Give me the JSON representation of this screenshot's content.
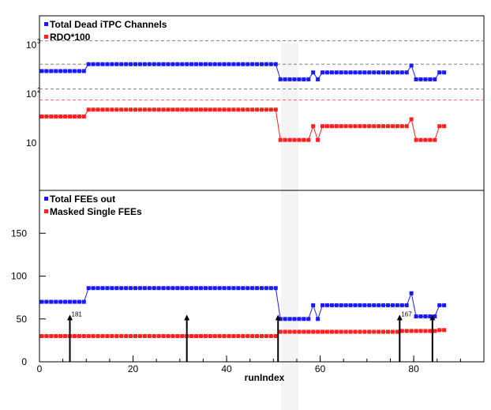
{
  "chart_data": [
    {
      "type": "line",
      "panel": "top",
      "ylabel": "",
      "xlabel": "",
      "scale": "log",
      "xlim": [
        0,
        95
      ],
      "y_tick_labels": [
        "10",
        "10",
        "10"
      ],
      "y_tick_exponents": [
        "3",
        "2",
        ""
      ],
      "legend": [
        "Total Dead iTPC Channels",
        "RDO*100"
      ],
      "legend_position": "top-left",
      "grid": false,
      "series": [
        {
          "name": "Total Dead iTPC Channels",
          "color": "#1a1aff",
          "segments": [
            {
              "x0": 0,
              "x1": 9,
              "y": 0.78
            },
            {
              "x0": 10,
              "x1": 50,
              "y": 0.83
            },
            {
              "x0": 51,
              "x1": 57,
              "y": 0.72
            },
            {
              "x0": 58,
              "x1": 58,
              "y": 0.77
            },
            {
              "x0": 59,
              "x1": 59,
              "y": 0.72
            },
            {
              "x0": 60,
              "x1": 78,
              "y": 0.77
            },
            {
              "x0": 79,
              "x1": 79,
              "y": 0.82
            },
            {
              "x0": 80,
              "x1": 84,
              "y": 0.72
            },
            {
              "x0": 85,
              "x1": 86,
              "y": 0.77
            }
          ]
        },
        {
          "name": "RDO*100",
          "color": "#ff2020",
          "segments": [
            {
              "x0": 0,
              "x1": 9,
              "y": 0.45
            },
            {
              "x0": 10,
              "x1": 50,
              "y": 0.5
            },
            {
              "x0": 51,
              "x1": 57,
              "y": 0.28
            },
            {
              "x0": 58,
              "x1": 58,
              "y": 0.38
            },
            {
              "x0": 59,
              "x1": 59,
              "y": 0.28
            },
            {
              "x0": 60,
              "x1": 78,
              "y": 0.38
            },
            {
              "x0": 79,
              "x1": 79,
              "y": 0.43
            },
            {
              "x0": 80,
              "x1": 84,
              "y": 0.28
            },
            {
              "x0": 85,
              "x1": 86,
              "y": 0.38
            }
          ]
        }
      ],
      "reference_lines": [
        {
          "y": 1.0,
          "color": "#808080"
        },
        {
          "y": 0.83,
          "color": "#808080"
        },
        {
          "y": 0.65,
          "color": "#808080"
        },
        {
          "y": 0.57,
          "color": "#ff6060"
        }
      ]
    },
    {
      "type": "line",
      "panel": "bottom",
      "xlabel": "runIndex",
      "ylabel": "",
      "xlim": [
        0,
        95
      ],
      "ylim": [
        0,
        200
      ],
      "x_ticks": [
        0,
        20,
        40,
        60,
        80
      ],
      "y_ticks": [
        0,
        50,
        100,
        150
      ],
      "legend": [
        "Total FEEs out",
        "Masked Single FEEs"
      ],
      "legend_position": "top-left",
      "grid": false,
      "series": [
        {
          "name": "Total FEEs out",
          "color": "#1a1aff",
          "segments": [
            {
              "x0": 0,
              "x1": 9,
              "y": 70
            },
            {
              "x0": 10,
              "x1": 50,
              "y": 86
            },
            {
              "x0": 51,
              "x1": 57,
              "y": 50
            },
            {
              "x0": 58,
              "x1": 58,
              "y": 66
            },
            {
              "x0": 59,
              "x1": 59,
              "y": 50
            },
            {
              "x0": 60,
              "x1": 78,
              "y": 66
            },
            {
              "x0": 79,
              "x1": 79,
              "y": 80
            },
            {
              "x0": 80,
              "x1": 84,
              "y": 53
            },
            {
              "x0": 85,
              "x1": 86,
              "y": 66
            }
          ]
        },
        {
          "name": "Masked Single FEEs",
          "color": "#ff2020",
          "segments": [
            {
              "x0": 0,
              "x1": 50,
              "y": 30
            },
            {
              "x0": 51,
              "x1": 76,
              "y": 35
            },
            {
              "x0": 77,
              "x1": 84,
              "y": 36
            },
            {
              "x0": 85,
              "x1": 86,
              "y": 37
            }
          ]
        }
      ],
      "arrows": [
        {
          "x": 6.5,
          "y": 55,
          "label": "181"
        },
        {
          "x": 31.5,
          "y": 55,
          "label": ""
        },
        {
          "x": 51,
          "y": 55,
          "label": ""
        },
        {
          "x": 77,
          "y": 55,
          "label": "167"
        },
        {
          "x": 84,
          "y": 55,
          "label": ""
        }
      ]
    }
  ]
}
